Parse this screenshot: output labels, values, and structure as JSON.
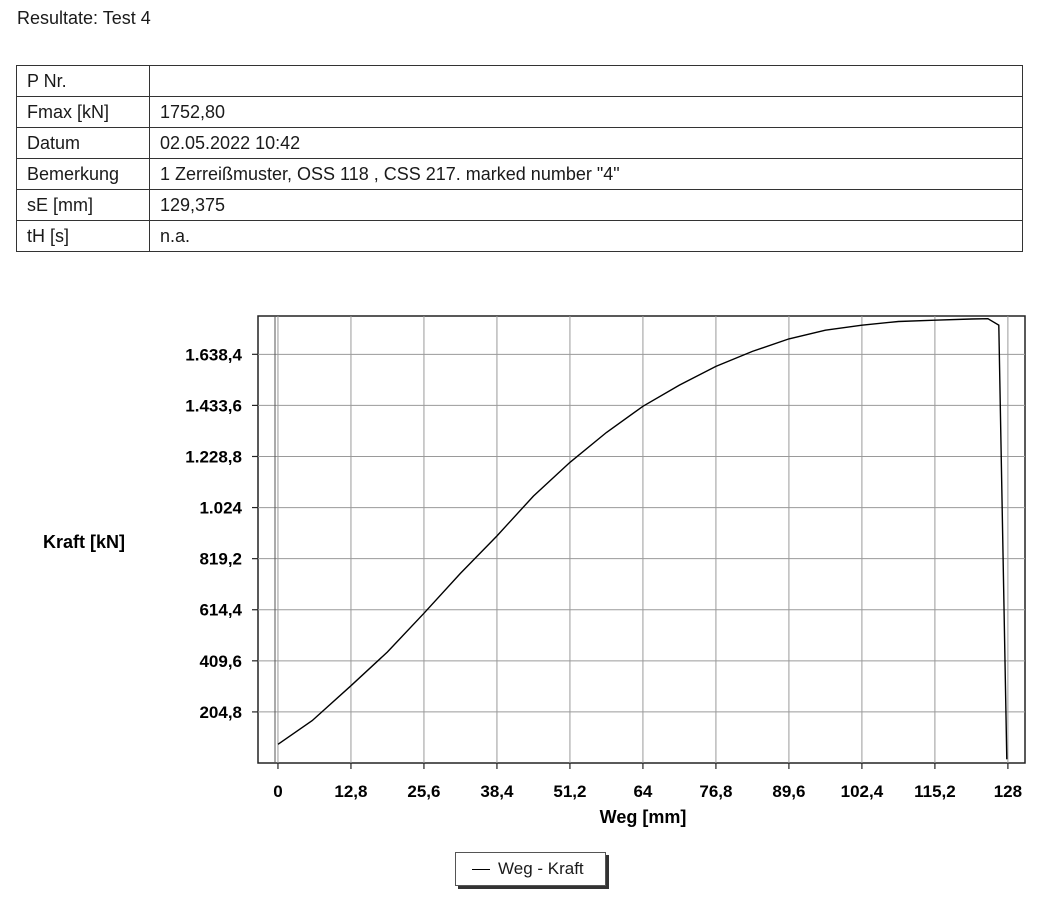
{
  "page_title": "Resultate: Test 4",
  "info_table": [
    {
      "key": "P Nr.",
      "value": ""
    },
    {
      "key": "Fmax [kN]",
      "value": "1752,80"
    },
    {
      "key": "Datum",
      "value": "02.05.2022 10:42"
    },
    {
      "key": "Bemerkung",
      "value": " 1 Zerreißmuster, OSS 118 , CSS 217. marked number \"4\""
    },
    {
      "key": "sE [mm]",
      "value": "129,375"
    },
    {
      "key": "tH [s]",
      "value": "n.a."
    }
  ],
  "chart_data": {
    "type": "line",
    "title": "",
    "xlabel": "Weg [mm]",
    "ylabel": "Kraft [kN]",
    "xlim": [
      -3.5,
      131
    ],
    "ylim": [
      0,
      1792
    ],
    "x_ticks": [
      0,
      12.8,
      25.6,
      38.4,
      51.2,
      64,
      76.8,
      89.6,
      102.4,
      115.2,
      128
    ],
    "x_tick_labels": [
      "0",
      "12,8",
      "25,6",
      "38,4",
      "51,2",
      "64",
      "76,8",
      "89,6",
      "102,4",
      "115,2",
      "128"
    ],
    "y_ticks": [
      204.8,
      409.6,
      614.4,
      819.2,
      1024,
      1228.8,
      1433.6,
      1638.4
    ],
    "y_tick_labels": [
      "204,8",
      "409,6",
      "614,4",
      "819,2",
      "1.024",
      "1.228,8",
      "1.433,6",
      "1.638,4"
    ],
    "grid": true,
    "legend_position": "bottom-center",
    "series": [
      {
        "name": "Weg - Kraft",
        "color": "#000000",
        "x": [
          0,
          6,
          12.8,
          19.2,
          25.6,
          32,
          38.4,
          44.8,
          51.2,
          57.6,
          64,
          70.4,
          76.8,
          83.2,
          89.6,
          96,
          102.4,
          108.8,
          115.2,
          121.6,
          124.5,
          126.4,
          127.8
        ],
        "y": [
          75,
          170,
          310,
          445,
          600,
          760,
          910,
          1070,
          1205,
          1325,
          1430,
          1515,
          1590,
          1650,
          1700,
          1735,
          1755,
          1770,
          1775,
          1780,
          1781,
          1755,
          15
        ]
      }
    ]
  }
}
